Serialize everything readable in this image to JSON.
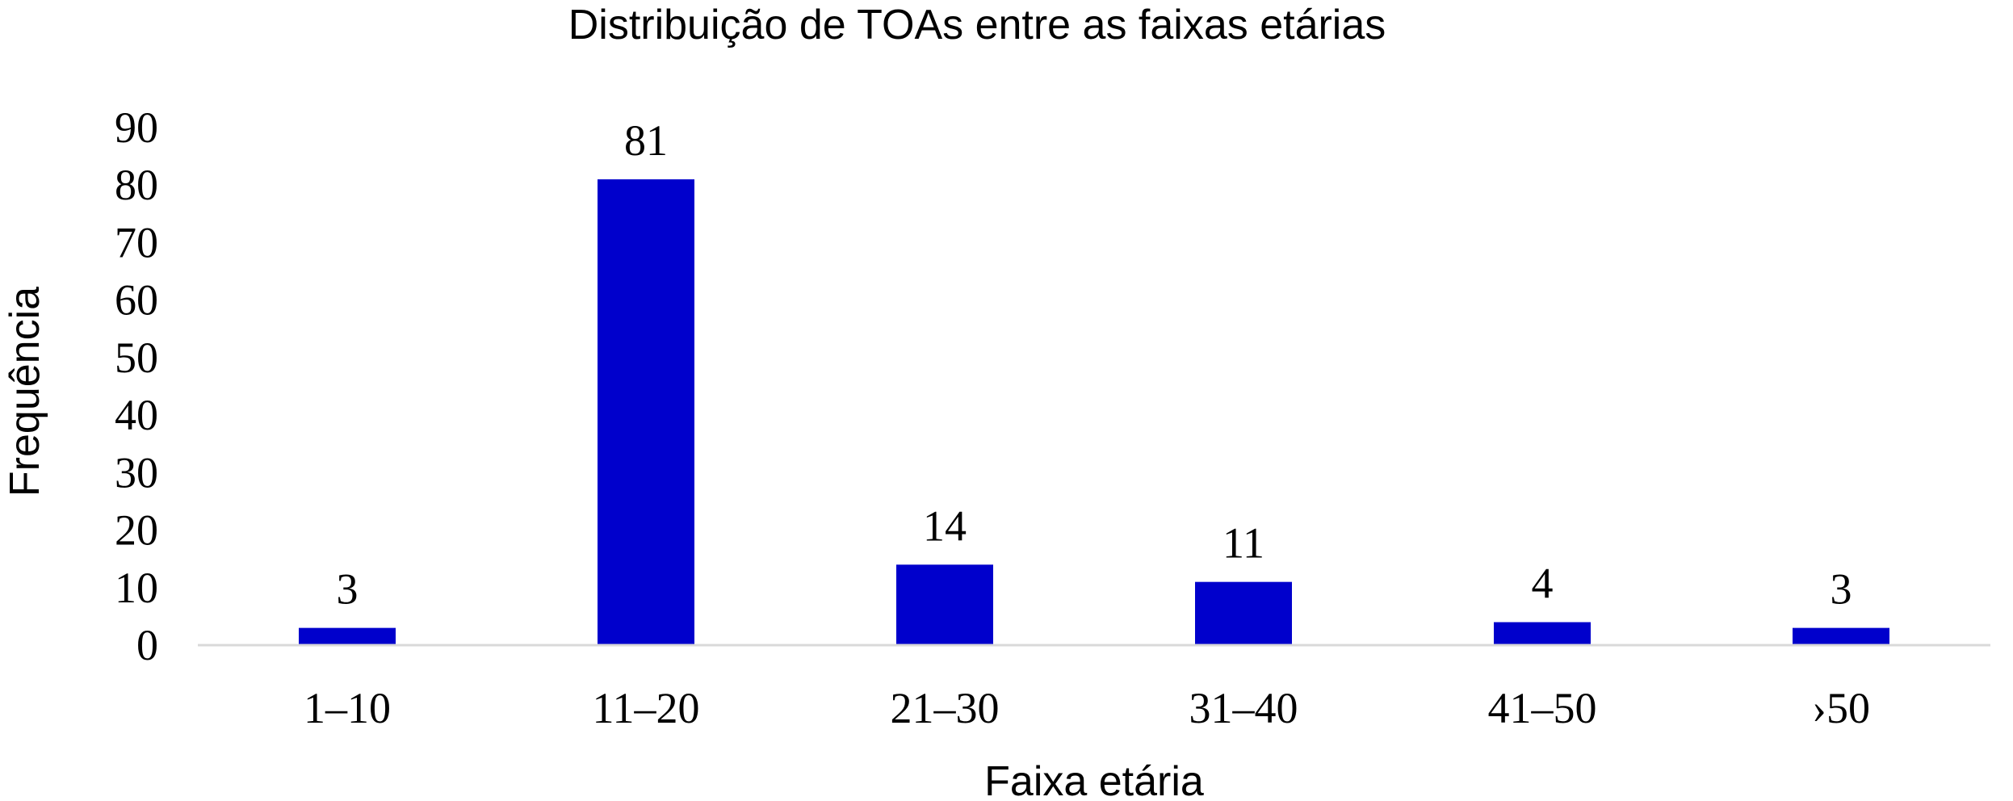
{
  "chart_data": {
    "type": "bar",
    "title": "Distribuição de TOAs entre as faixas etárias",
    "xlabel": "Faixa etária",
    "ylabel": "Frequência",
    "categories": [
      "1–10",
      "11–20",
      "21–30",
      "31–40",
      "41–50",
      "›50"
    ],
    "values": [
      3,
      81,
      14,
      11,
      4,
      3
    ],
    "data_labels": [
      "3",
      "81",
      "14",
      "11",
      "4",
      "3"
    ],
    "ylim": [
      0,
      90
    ],
    "yticks": [
      "0",
      "10",
      "20",
      "30",
      "40",
      "50",
      "60",
      "70",
      "80",
      "90"
    ],
    "grid": false,
    "legend": "none",
    "bar_color": "#0000CC",
    "axis_color": "#D9D9D9"
  }
}
